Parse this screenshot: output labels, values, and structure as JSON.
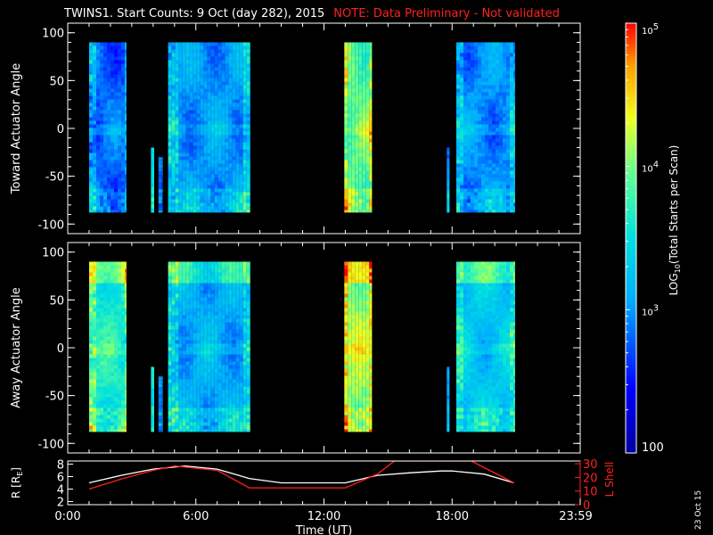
{
  "header": {
    "title": "TWINS1. Start Counts:  9 Oct (day 282), 2015",
    "note": "NOTE: Data Preliminary - Not validated"
  },
  "footer": {
    "date_stamp": "23 Oct 15"
  },
  "chart_data": [
    {
      "type": "heatmap",
      "panel": "toward",
      "ylabel": "Toward Actuator Angle",
      "ylim": [
        -110,
        110
      ],
      "yticks": [
        "100",
        "50",
        "0",
        "-50",
        "-100"
      ],
      "xlim": [
        0,
        24
      ],
      "angle_range": [
        -88,
        90
      ],
      "data_intervals_hours": [
        [
          1.0,
          2.75
        ],
        [
          3.9,
          4.05
        ],
        [
          4.25,
          4.45
        ],
        [
          4.7,
          8.55
        ],
        [
          12.95,
          14.25
        ],
        [
          17.75,
          17.88
        ],
        [
          18.2,
          20.95
        ]
      ],
      "base_log10_counts": [
        2.8,
        3.4,
        2.9,
        3.0,
        3.9,
        2.9,
        2.95
      ]
    },
    {
      "type": "heatmap",
      "panel": "away",
      "ylabel": "Away Actuator Angle",
      "ylim": [
        -110,
        110
      ],
      "yticks": [
        "100",
        "50",
        "0",
        "-50",
        "-100"
      ],
      "xlim": [
        0,
        24
      ],
      "angle_range": [
        -88,
        90
      ],
      "data_intervals_hours": [
        [
          1.0,
          2.75
        ],
        [
          3.9,
          4.05
        ],
        [
          4.25,
          4.45
        ],
        [
          4.7,
          8.55
        ],
        [
          12.95,
          14.25
        ],
        [
          17.75,
          17.88
        ],
        [
          18.2,
          20.95
        ]
      ],
      "base_log10_counts": [
        3.6,
        3.5,
        3.0,
        3.1,
        4.1,
        3.0,
        3.3
      ]
    },
    {
      "type": "line",
      "panel": "orbit",
      "ylabel": "R [R",
      "ylabel_sub": "E",
      "ylabel_end": "]",
      "y2label": "L Shell",
      "ylim": [
        1.5,
        8.5
      ],
      "yticks": [
        "8",
        "6",
        "4",
        "2"
      ],
      "y2lim": [
        0,
        32
      ],
      "y2ticks": [
        "30",
        "20",
        "10",
        "0"
      ],
      "series": [
        {
          "color": "#ffffff",
          "x": [
            1,
            2.5,
            4,
            5.5,
            7,
            8.5,
            10,
            11.5,
            13,
            14.5,
            16,
            17.5,
            18,
            19.5,
            20.9
          ],
          "values": [
            5.0,
            6.2,
            7.2,
            7.7,
            7.2,
            5.7,
            5.0,
            5.0,
            5.0,
            6.2,
            6.6,
            6.9,
            6.9,
            6.4,
            5.0
          ]
        },
        {
          "color": "#ff2020",
          "x": [
            1,
            2.5,
            4,
            5,
            7,
            8.5,
            10,
            11.5,
            13,
            14.5,
            15.3,
            17.2,
            18.9,
            20.9
          ],
          "values": [
            4.0,
            5.6,
            7.0,
            7.7,
            7.0,
            4.2,
            4.2,
            4.2,
            4.2,
            6.4,
            8.5,
            8.5,
            8.5,
            5.0
          ]
        }
      ],
      "xticks": [
        "0:00",
        "6:00",
        "12:00",
        "18:00",
        "23:59"
      ],
      "xlabel": "Time (UT)"
    },
    {
      "type": "colorbar",
      "label_prefix": "LOG",
      "label_sub": "10",
      "label_rest": "(Total Starts per Scan)",
      "scale": "log",
      "range": [
        2,
        5
      ],
      "tick_labels": [
        {
          "base": "10",
          "exp": "5",
          "value": 5
        },
        {
          "base": "10",
          "exp": "4",
          "value": 4
        },
        {
          "base": "10",
          "exp": "3",
          "value": 3
        },
        {
          "base": "100",
          "exp": "",
          "value": 2
        }
      ]
    }
  ]
}
